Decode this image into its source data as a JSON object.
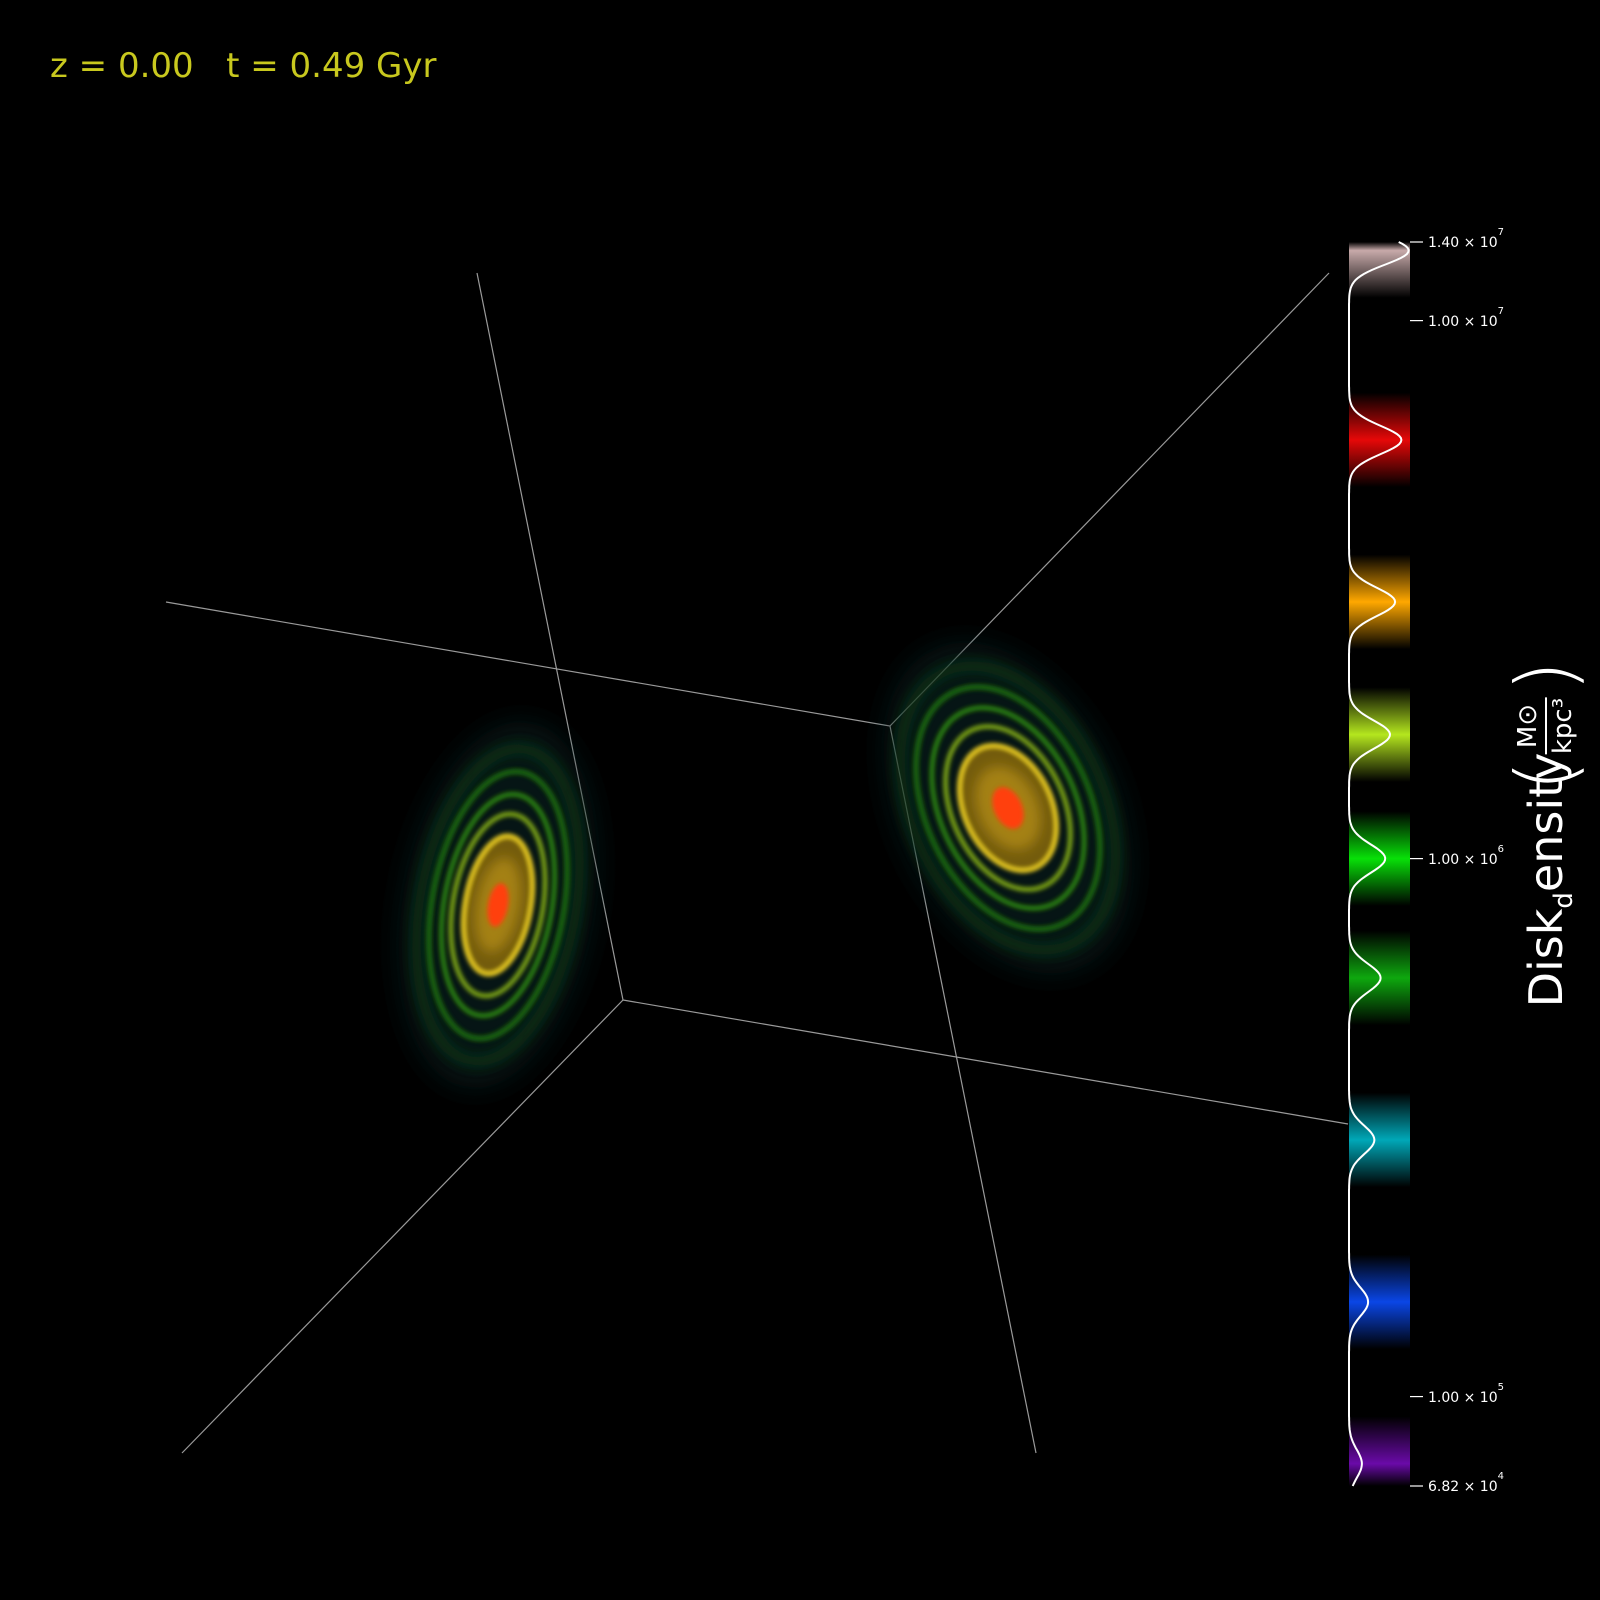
{
  "header": {
    "redshift": "z = 0.00",
    "time": "t = 0.49 Gyr",
    "color": "#c8c81e"
  },
  "colorbar": {
    "field": "Disk",
    "field_sub": "d",
    "field_rest": "ensity",
    "unit_num": "M⊙",
    "unit_den": "kpc³",
    "ticks": [
      {
        "mantissa": "1.40 × 10",
        "exp": "7",
        "value": 14000000
      },
      {
        "mantissa": "1.00 × 10",
        "exp": "7",
        "value": 10000000
      },
      {
        "mantissa": "1.00 × 10",
        "exp": "6",
        "value": 1000000
      },
      {
        "mantissa": "1.00 × 10",
        "exp": "5",
        "value": 100000
      },
      {
        "mantissa": "6.82 × 10",
        "exp": "4",
        "value": 68200
      }
    ],
    "bands": [
      {
        "color": "#6a0aa8",
        "value": 75000
      },
      {
        "color": "#0a46e6",
        "value": 150000
      },
      {
        "color": "#00a8b8",
        "value": 300000
      },
      {
        "color": "#0ea80e",
        "value": 600000
      },
      {
        "color": "#08e008",
        "value": 1000000
      },
      {
        "color": "#b4e61e",
        "value": 1700000
      },
      {
        "color": "#ffa800",
        "value": 3000000
      },
      {
        "color": "#e60808",
        "value": 6000000
      },
      {
        "color": "#c8aaaa",
        "value": 13500000
      }
    ]
  }
}
